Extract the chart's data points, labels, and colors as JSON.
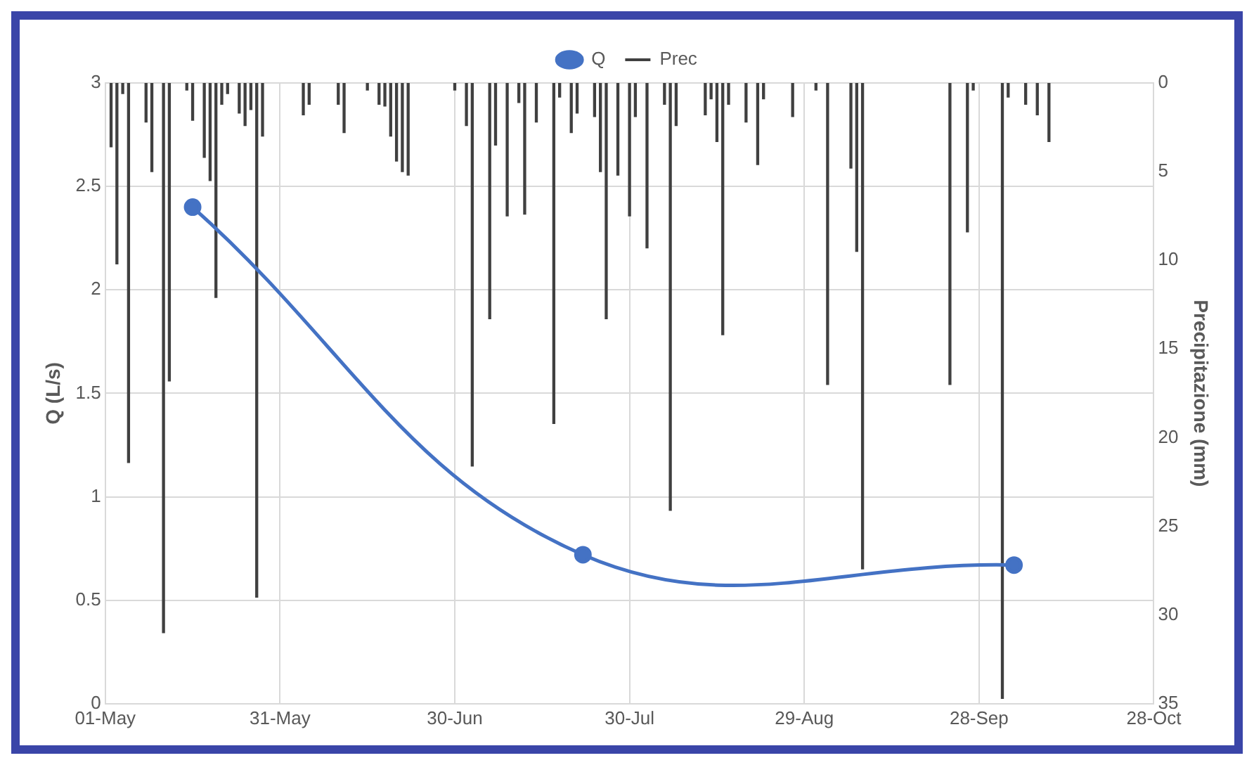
{
  "chart_data": {
    "type": "line",
    "series": [
      {
        "name": "Q",
        "color": "#4472c4",
        "marker": "circle",
        "x": [
          "--05-16",
          "--07-22",
          "--10-04"
        ],
        "values": [
          2.4,
          0.72,
          0.67
        ]
      },
      {
        "name": "Prec",
        "type": "bar",
        "axis": "y2",
        "color": "#404040",
        "marker": "none",
        "x": [
          "--05-02",
          "--05-03",
          "--05-04",
          "--05-05",
          "--05-08",
          "--05-09",
          "--05-11",
          "--05-12",
          "--05-15",
          "--05-16",
          "--05-18",
          "--05-19",
          "--05-20",
          "--05-21",
          "--05-22",
          "--05-24",
          "--05-25",
          "--05-26",
          "--05-27",
          "--05-28",
          "--06-04",
          "--06-05",
          "--06-10",
          "--06-11",
          "--06-15",
          "--06-17",
          "--06-18",
          "--06-19",
          "--06-20",
          "--06-21",
          "--06-22",
          "--06-30",
          "--07-02",
          "--07-03",
          "--07-06",
          "--07-07",
          "--07-09",
          "--07-11",
          "--07-12",
          "--07-14",
          "--07-17",
          "--07-18",
          "--07-20",
          "--07-21",
          "--07-24",
          "--07-25",
          "--07-26",
          "--07-28",
          "--07-30",
          "--07-31",
          "--08-02",
          "--08-05",
          "--08-06",
          "--08-07",
          "--08-12",
          "--08-13",
          "--08-14",
          "--08-15",
          "--08-16",
          "--08-19",
          "--08-21",
          "--08-22",
          "--08-27",
          "--08-31",
          "--09-02",
          "--09-06",
          "--09-07",
          "--09-08",
          "--09-23",
          "--09-26",
          "--09-27",
          "--10-02",
          "--10-03",
          "--10-06",
          "--10-08",
          "--10-10"
        ],
        "values": [
          3.6,
          10.2,
          0.6,
          21.4,
          2.2,
          5.0,
          31.0,
          16.8,
          0.4,
          2.1,
          4.2,
          5.5,
          12.1,
          1.2,
          0.6,
          1.7,
          2.4,
          1.5,
          29.0,
          3.0,
          1.8,
          1.2,
          1.2,
          2.8,
          0.4,
          1.2,
          1.3,
          3.0,
          4.4,
          5.0,
          5.2,
          0.4,
          2.4,
          21.6,
          13.3,
          3.5,
          7.5,
          1.1,
          7.4,
          2.2,
          19.2,
          0.8,
          2.8,
          1.7,
          1.9,
          5.0,
          13.3,
          5.2,
          7.5,
          1.9,
          9.3,
          1.2,
          24.1,
          2.4,
          1.8,
          0.9,
          3.3,
          14.2,
          1.2,
          2.2,
          4.6,
          0.9,
          1.9,
          0.4,
          17.0,
          4.8,
          9.5,
          27.4,
          17.0,
          8.4,
          0.4,
          34.7,
          0.8,
          1.2,
          1.8,
          3.3
        ]
      }
    ],
    "ylabel": "Q (L/s)",
    "y2label": "Precipitazione (mm)",
    "xlim": [
      "--05-01",
      "--10-28"
    ],
    "xticks": [
      {
        "value": "--05-01",
        "label": "01-May"
      },
      {
        "value": "--05-31",
        "label": "31-May"
      },
      {
        "value": "--06-30",
        "label": "30-Jun"
      },
      {
        "value": "--07-30",
        "label": "30-Jul"
      },
      {
        "value": "--08-29",
        "label": "29-Aug"
      },
      {
        "value": "--09-28",
        "label": "28-Sep"
      },
      {
        "value": "--10-28",
        "label": "28-Oct"
      }
    ],
    "ylim": [
      0,
      3
    ],
    "yticks": [
      0,
      0.5,
      1,
      1.5,
      2,
      2.5,
      3
    ],
    "y2lim": [
      35,
      0
    ],
    "y2ticks": [
      0,
      5,
      10,
      15,
      20,
      25,
      30,
      35
    ],
    "grid": true,
    "legend": "top",
    "line_style": "solid"
  }
}
